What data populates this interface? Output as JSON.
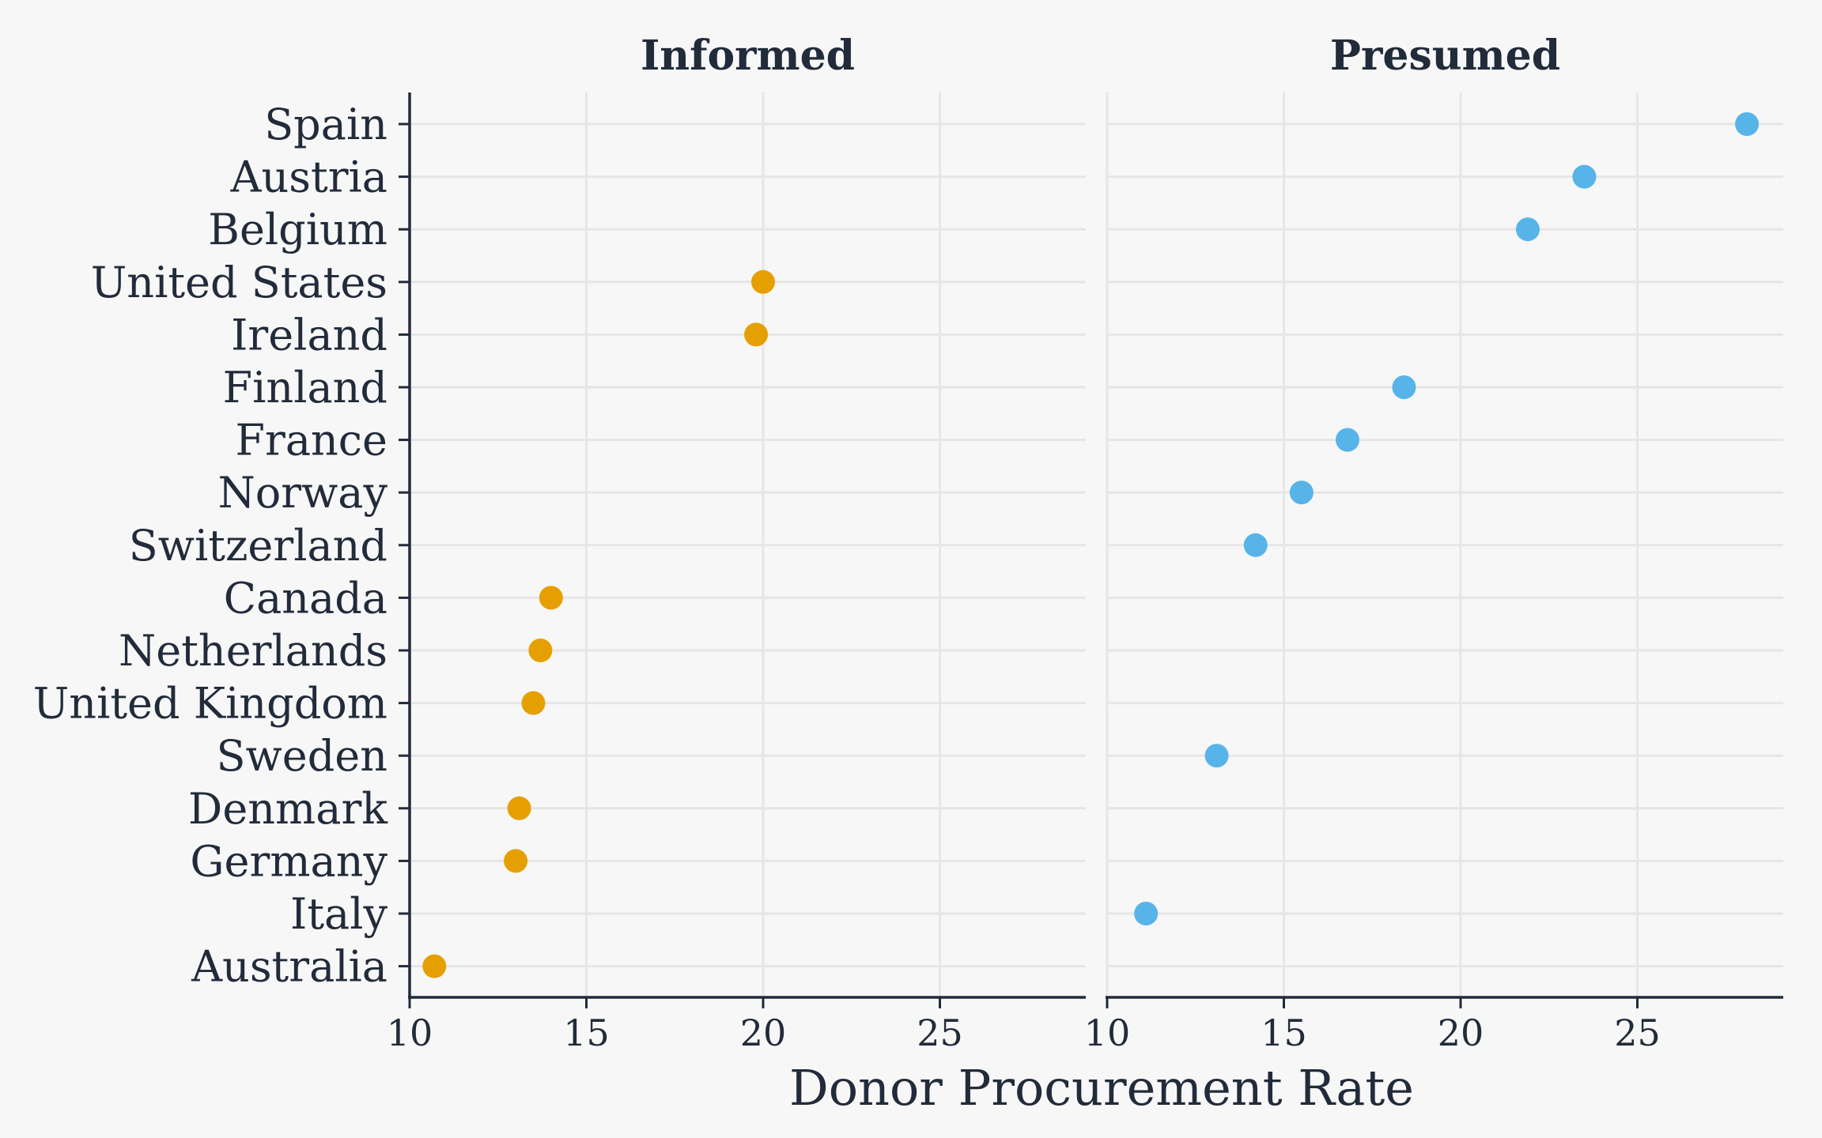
{
  "chart_data": {
    "type": "scatter",
    "xlabel": "Donor Procurement Rate",
    "ylabel": "",
    "xlim": [
      10,
      29
    ],
    "x_ticks": [
      10,
      15,
      20,
      25
    ],
    "grid": true,
    "categories": [
      "Spain",
      "Austria",
      "Belgium",
      "United States",
      "Ireland",
      "Finland",
      "France",
      "Norway",
      "Switzerland",
      "Canada",
      "Netherlands",
      "United Kingdom",
      "Sweden",
      "Denmark",
      "Germany",
      "Italy",
      "Australia"
    ],
    "panels": [
      {
        "title": "Informed",
        "color": "#E69F00",
        "points": [
          {
            "country": "United States",
            "value": 20.0
          },
          {
            "country": "Ireland",
            "value": 19.8
          },
          {
            "country": "Canada",
            "value": 14.0
          },
          {
            "country": "Netherlands",
            "value": 13.7
          },
          {
            "country": "United Kingdom",
            "value": 13.5
          },
          {
            "country": "Denmark",
            "value": 13.1
          },
          {
            "country": "Germany",
            "value": 13.0
          },
          {
            "country": "Australia",
            "value": 10.7
          }
        ]
      },
      {
        "title": "Presumed",
        "color": "#56B4E9",
        "points": [
          {
            "country": "Spain",
            "value": 28.1
          },
          {
            "country": "Austria",
            "value": 23.5
          },
          {
            "country": "Belgium",
            "value": 21.9
          },
          {
            "country": "Finland",
            "value": 18.4
          },
          {
            "country": "France",
            "value": 16.8
          },
          {
            "country": "Norway",
            "value": 15.5
          },
          {
            "country": "Switzerland",
            "value": 14.2
          },
          {
            "country": "Sweden",
            "value": 13.1
          },
          {
            "country": "Italy",
            "value": 11.1
          }
        ]
      }
    ]
  }
}
